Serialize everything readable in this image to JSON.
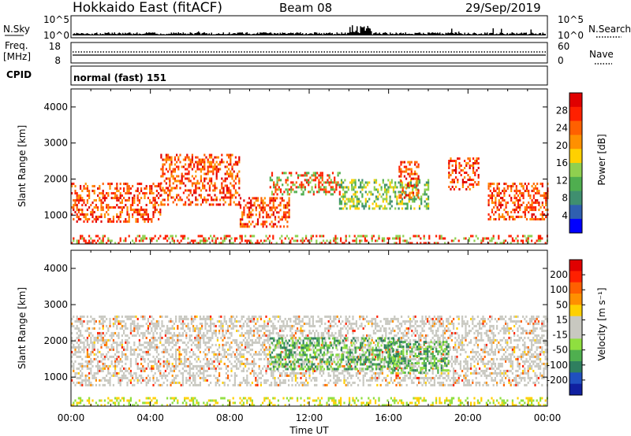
{
  "header": {
    "station": "Hokkaido East (fitACF)",
    "beam": "Beam 08",
    "date": "29/Sep/2019"
  },
  "strips": {
    "nsky": {
      "label": "N.Sky",
      "left_ticks": [
        "10^5",
        "10^0"
      ]
    },
    "nsearch": {
      "label": "N.Search",
      "right_ticks": [
        "10^5",
        "10^0"
      ]
    },
    "freq": {
      "label_line1": "Freq.",
      "label_line2": "[MHz]",
      "left_ticks": [
        "18",
        "8"
      ]
    },
    "nave": {
      "label": "Nave",
      "right_ticks": [
        "60",
        "0"
      ]
    },
    "cpid": {
      "label": "CPID",
      "mode_text": "normal (fast) 151"
    }
  },
  "time_axis": {
    "title": "Time UT",
    "ticks": [
      "00:00",
      "04:00",
      "08:00",
      "12:00",
      "16:00",
      "20:00",
      "00:00"
    ]
  },
  "chart_data": [
    {
      "type": "heatmap",
      "ylabel": "Slant Range [km]",
      "yticks": [
        "1000",
        "2000",
        "3000",
        "4000"
      ],
      "ylim": [
        200,
        4500
      ],
      "xlim_hours": [
        0,
        24
      ],
      "colorbar": {
        "label": "Power [dB]",
        "tick_labels": [
          "4",
          "8",
          "12",
          "16",
          "20",
          "24",
          "28"
        ],
        "colors": [
          "#0000ff",
          "#2f5fb0",
          "#3f8f6f",
          "#4fae4f",
          "#8fd04f",
          "#ffd000",
          "#ff9000",
          "#ff6000",
          "#ff2000",
          "#e00000"
        ]
      },
      "regions": [
        {
          "t": [
            0.0,
            4.5
          ],
          "r": [
            800,
            1900
          ],
          "level": "strong"
        },
        {
          "t": [
            4.5,
            8.5
          ],
          "r": [
            1300,
            2700
          ],
          "level": "strong"
        },
        {
          "t": [
            8.5,
            11.0
          ],
          "r": [
            700,
            1500
          ],
          "level": "strong"
        },
        {
          "t": [
            10.0,
            13.5
          ],
          "r": [
            1600,
            2200
          ],
          "level": "medium"
        },
        {
          "t": [
            13.5,
            18.0
          ],
          "r": [
            1200,
            2000
          ],
          "level": "weak"
        },
        {
          "t": [
            16.5,
            17.5
          ],
          "r": [
            1500,
            2500
          ],
          "level": "strong"
        },
        {
          "t": [
            19.0,
            20.5
          ],
          "r": [
            1700,
            2600
          ],
          "level": "strong"
        },
        {
          "t": [
            21.0,
            24.0
          ],
          "r": [
            900,
            1900
          ],
          "level": "strong"
        },
        {
          "t": [
            0.0,
            24.0
          ],
          "r": [
            250,
            450
          ],
          "level": "ground"
        }
      ]
    },
    {
      "type": "heatmap",
      "ylabel": "Slant Range [km]",
      "yticks": [
        "1000",
        "2000",
        "3000",
        "4000"
      ],
      "ylim": [
        200,
        4500
      ],
      "xlim_hours": [
        0,
        24
      ],
      "colorbar": {
        "label": "Velocity [m s⁻¹]",
        "tick_labels": [
          "200",
          "100",
          "50",
          "15",
          "-15",
          "-50",
          "-100",
          "-200"
        ],
        "colors": [
          "#1020a0",
          "#2050c0",
          "#2f7f5f",
          "#4faf4f",
          "#8fdf3f",
          "#c8c8c0",
          "#c8c8c0",
          "#ffd000",
          "#ff9000",
          "#ff6000",
          "#ff2000",
          "#e00000"
        ]
      },
      "regions": [
        {
          "t": [
            0.0,
            24.0
          ],
          "r": [
            800,
            2700
          ],
          "level": "gray"
        },
        {
          "t": [
            10.0,
            16.5
          ],
          "r": [
            1200,
            2100
          ],
          "level": "green"
        },
        {
          "t": [
            16.0,
            19.0
          ],
          "r": [
            1100,
            2000
          ],
          "level": "green"
        },
        {
          "t": [
            0.0,
            24.0
          ],
          "r": [
            250,
            450
          ],
          "level": "ground"
        }
      ]
    }
  ]
}
